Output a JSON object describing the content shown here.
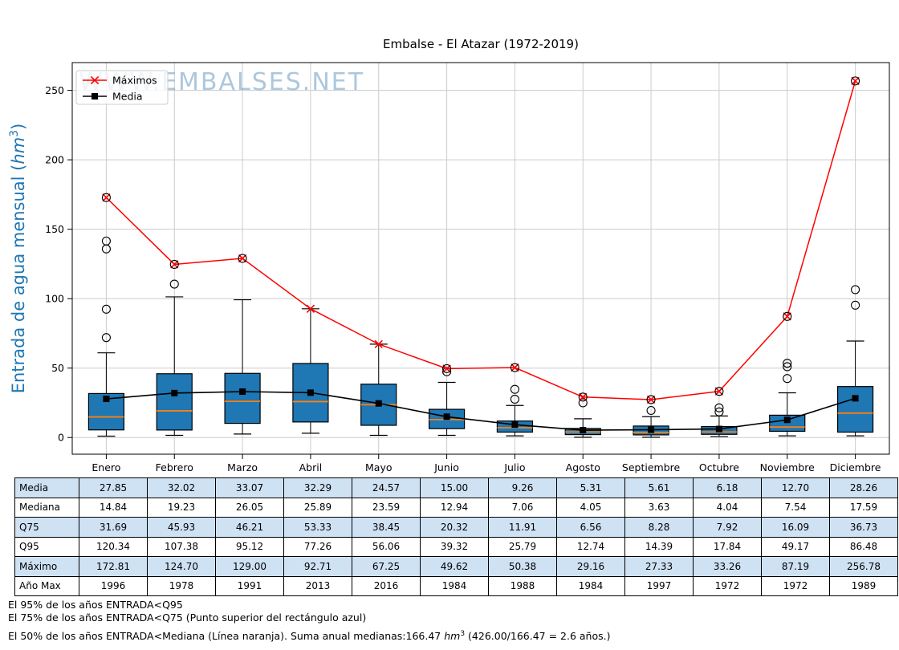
{
  "colors": {
    "box_fill": "#1f77b4",
    "box_edge": "#000000",
    "median_line": "#ff7f0e",
    "maxima_line": "#ff0000",
    "media_line": "#000000",
    "grid": "#cccccc",
    "frame": "#000000",
    "ylabel": "#1f77b4",
    "watermark": "#6a9bc3",
    "table_shaded_row": "#cfe2f4",
    "table_plain_row": "#ffffff",
    "legend_border": "#cccccc"
  },
  "chart_data": {
    "type": "boxplot",
    "title": "Embalse - El Atazar (1972-2019)",
    "watermark": "WWW.EMBALSES.NET",
    "ylabel": "Entrada de agua mensual (hm³)",
    "ylabel_unit": "hm",
    "ylabel_exp": "3",
    "ylim": [
      -12,
      270
    ],
    "yticks": [
      0,
      50,
      100,
      150,
      200,
      250
    ],
    "categories": [
      "Enero",
      "Febrero",
      "Marzo",
      "Abril",
      "Mayo",
      "Junio",
      "Julio",
      "Agosto",
      "Septiembre",
      "Octubre",
      "Noviembre",
      "Diciembre"
    ],
    "legend": [
      {
        "label": "Máximos",
        "marker": "x",
        "color": "#ff0000"
      },
      {
        "label": "Media",
        "marker": "square",
        "color": "#000000"
      }
    ],
    "series": [
      {
        "name": "Máximos",
        "values": [
          172.81,
          124.7,
          129.0,
          92.71,
          67.25,
          49.62,
          50.38,
          29.16,
          27.33,
          33.26,
          87.19,
          256.78
        ]
      },
      {
        "name": "Media",
        "values": [
          27.85,
          32.02,
          33.07,
          32.29,
          24.57,
          15.0,
          9.26,
          5.31,
          5.61,
          6.18,
          12.7,
          28.26
        ]
      },
      {
        "name": "Mediana",
        "values": [
          14.84,
          19.23,
          26.05,
          25.89,
          23.59,
          12.94,
          7.06,
          4.05,
          3.63,
          4.04,
          7.54,
          17.59
        ]
      },
      {
        "name": "Q75",
        "values": [
          31.69,
          45.93,
          46.21,
          53.33,
          38.45,
          20.32,
          11.91,
          6.56,
          8.28,
          7.92,
          16.09,
          36.73
        ]
      },
      {
        "name": "Q95",
        "values": [
          120.34,
          107.38,
          95.12,
          77.26,
          56.06,
          39.32,
          25.79,
          12.74,
          14.39,
          17.84,
          49.17,
          86.48
        ]
      }
    ],
    "boxes": [
      {
        "whisker_low": 1.0,
        "q25": 5.5,
        "median": 14.84,
        "q75": 31.69,
        "whisker_high": 61.0,
        "outliers": [
          72.0,
          92.4,
          135.8,
          141.5
        ],
        "max_flier_circled": true
      },
      {
        "whisker_low": 1.6,
        "q25": 5.4,
        "median": 19.23,
        "q75": 45.93,
        "whisker_high": 101.3,
        "outliers": [
          110.5
        ],
        "max_flier_circled": true
      },
      {
        "whisker_low": 2.5,
        "q25": 10.2,
        "median": 26.05,
        "q75": 46.21,
        "whisker_high": 99.2,
        "outliers": [],
        "max_flier_circled": true
      },
      {
        "whisker_low": 3.1,
        "q25": 11.2,
        "median": 25.89,
        "q75": 53.33,
        "whisker_high": 92.71,
        "outliers": [],
        "max_flier_circled": false
      },
      {
        "whisker_low": 1.6,
        "q25": 8.8,
        "median": 23.59,
        "q75": 38.45,
        "whisker_high": 67.25,
        "outliers": [],
        "max_flier_circled": false
      },
      {
        "whisker_low": 1.6,
        "q25": 6.4,
        "median": 12.94,
        "q75": 20.32,
        "whisker_high": 39.7,
        "outliers": [
          47.4
        ],
        "max_flier_circled": true
      },
      {
        "whisker_low": 1.2,
        "q25": 3.9,
        "median": 7.06,
        "q75": 11.91,
        "whisker_high": 23.1,
        "outliers": [
          27.6,
          34.7
        ],
        "max_flier_circled": true
      },
      {
        "whisker_low": 0.2,
        "q25": 2.1,
        "median": 4.05,
        "q75": 6.56,
        "whisker_high": 13.5,
        "outliers": [
          25.0
        ],
        "max_flier_circled": true
      },
      {
        "whisker_low": 0.2,
        "q25": 1.9,
        "median": 3.63,
        "q75": 8.28,
        "whisker_high": 15.0,
        "outliers": [
          19.5
        ],
        "max_flier_circled": true
      },
      {
        "whisker_low": 0.75,
        "q25": 2.3,
        "median": 4.04,
        "q75": 7.92,
        "whisker_high": 15.5,
        "outliers": [
          18.5,
          21.4
        ],
        "max_flier_circled": true
      },
      {
        "whisker_low": 1.2,
        "q25": 4.5,
        "median": 7.54,
        "q75": 16.09,
        "whisker_high": 32.2,
        "outliers": [
          42.5,
          51.0,
          53.5
        ],
        "max_flier_circled": true
      },
      {
        "whisker_low": 1.2,
        "q25": 3.9,
        "median": 17.59,
        "q75": 36.73,
        "whisker_high": 69.5,
        "outliers": [
          95.3,
          106.5
        ],
        "max_flier_circled": true
      }
    ]
  },
  "table": {
    "rows": [
      {
        "label": "Media",
        "shaded": true,
        "values": [
          "27.85",
          "32.02",
          "33.07",
          "32.29",
          "24.57",
          "15.00",
          "9.26",
          "5.31",
          "5.61",
          "6.18",
          "12.70",
          "28.26"
        ]
      },
      {
        "label": "Mediana",
        "shaded": false,
        "values": [
          "14.84",
          "19.23",
          "26.05",
          "25.89",
          "23.59",
          "12.94",
          "7.06",
          "4.05",
          "3.63",
          "4.04",
          "7.54",
          "17.59"
        ]
      },
      {
        "label": "Q75",
        "shaded": true,
        "values": [
          "31.69",
          "45.93",
          "46.21",
          "53.33",
          "38.45",
          "20.32",
          "11.91",
          "6.56",
          "8.28",
          "7.92",
          "16.09",
          "36.73"
        ]
      },
      {
        "label": "Q95",
        "shaded": false,
        "values": [
          "120.34",
          "107.38",
          "95.12",
          "77.26",
          "56.06",
          "39.32",
          "25.79",
          "12.74",
          "14.39",
          "17.84",
          "49.17",
          "86.48"
        ]
      },
      {
        "label": "Máximo",
        "shaded": true,
        "values": [
          "172.81",
          "124.70",
          "129.00",
          "92.71",
          "67.25",
          "49.62",
          "50.38",
          "29.16",
          "27.33",
          "33.26",
          "87.19",
          "256.78"
        ]
      },
      {
        "label": "Año Max",
        "shaded": false,
        "values": [
          "1996",
          "1978",
          "1991",
          "2013",
          "2016",
          "1984",
          "1988",
          "1984",
          "1997",
          "1972",
          "1972",
          "1989"
        ]
      }
    ]
  },
  "footnotes": [
    "El 95% de los años ENTRADA<Q95",
    "El 75% de los años ENTRADA<Q75 (Punto superior del rectángulo azul)",
    "El 50% de los años ENTRADA<Mediana (Línea naranja). Suma anual medianas:166.47 hm³ (426.00/166.47 = 2.6 años.)"
  ]
}
